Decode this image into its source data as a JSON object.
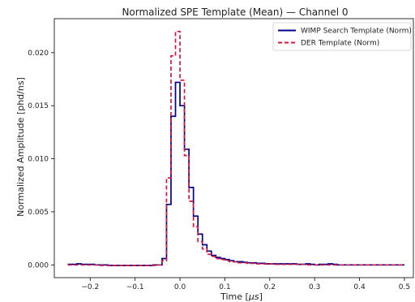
{
  "chart_data": {
    "type": "line",
    "title": "Normalized SPE Template (Mean) — Channel 0",
    "xlabel_prefix": "Time [",
    "xlabel_unit": "μs",
    "xlabel_suffix": "]",
    "ylabel": "Normalized Amplitude [phd/ns]",
    "xlim": [
      -0.28,
      0.52
    ],
    "ylim": [
      -0.0012,
      0.0232
    ],
    "x_ticks": [
      -0.2,
      -0.1,
      0.0,
      0.1,
      0.2,
      0.3,
      0.4,
      0.5
    ],
    "x_tick_labels": [
      "−0.2",
      "−0.1",
      "0.0",
      "0.1",
      "0.2",
      "0.3",
      "0.4",
      "0.5"
    ],
    "y_ticks": [
      0.0,
      0.005,
      0.01,
      0.015,
      0.02
    ],
    "y_tick_labels": [
      "0.000",
      "0.005",
      "0.010",
      "0.015",
      "0.020"
    ],
    "grid": false,
    "legend_position": "top-right",
    "step_bin_width": 0.01,
    "series": [
      {
        "name": "WIMP Search Template (Norm)",
        "color": "#00008b",
        "style": "solid",
        "x": [
          -0.25,
          -0.24,
          -0.23,
          -0.22,
          -0.21,
          -0.2,
          -0.19,
          -0.18,
          -0.17,
          -0.16,
          -0.15,
          -0.14,
          -0.13,
          -0.12,
          -0.11,
          -0.1,
          -0.09,
          -0.08,
          -0.07,
          -0.06,
          -0.05,
          -0.04,
          -0.03,
          -0.02,
          -0.01,
          0.0,
          0.01,
          0.02,
          0.03,
          0.04,
          0.05,
          0.06,
          0.07,
          0.08,
          0.09,
          0.1,
          0.11,
          0.12,
          0.13,
          0.14,
          0.15,
          0.16,
          0.17,
          0.18,
          0.19,
          0.2,
          0.21,
          0.22,
          0.23,
          0.24,
          0.25,
          0.26,
          0.27,
          0.28,
          0.29,
          0.3,
          0.31,
          0.32,
          0.33,
          0.34,
          0.35,
          0.36,
          0.37,
          0.38,
          0.39,
          0.4,
          0.41,
          0.42,
          0.43,
          0.44,
          0.45,
          0.46,
          0.47,
          0.48,
          0.49
        ],
        "values": [
          5e-05,
          5e-05,
          0.0001,
          5e-05,
          5e-05,
          5e-05,
          0.0,
          0.0,
          0.0,
          -5e-05,
          -5e-05,
          -5e-05,
          -5e-05,
          -5e-05,
          -5e-05,
          -5e-05,
          -5e-05,
          -5e-05,
          -5e-05,
          0.0,
          0.0,
          0.0006,
          0.0057,
          0.014,
          0.0172,
          0.015,
          0.0109,
          0.0073,
          0.0046,
          0.0029,
          0.0019,
          0.0013,
          0.0009,
          0.0007,
          0.0006,
          0.0005,
          0.0004,
          0.0003,
          0.0003,
          0.00025,
          0.0002,
          0.0002,
          0.00015,
          0.00015,
          0.0001,
          0.0001,
          0.0001,
          0.0001,
          0.0001,
          0.0001,
          0.0001,
          5e-05,
          5e-05,
          0.0001,
          5e-05,
          0.0,
          5e-05,
          5e-05,
          0.0001,
          5e-05,
          0.0,
          0.0,
          0.0,
          0.0,
          0.0,
          0.0,
          0.0,
          0.0,
          0.0,
          0.0,
          0.0,
          0.0,
          0.0,
          0.0,
          0.0
        ]
      },
      {
        "name": "DER Template (Norm)",
        "color": "#dc143c",
        "style": "dashed",
        "x": [
          -0.25,
          -0.24,
          -0.23,
          -0.22,
          -0.21,
          -0.2,
          -0.19,
          -0.18,
          -0.17,
          -0.16,
          -0.15,
          -0.14,
          -0.13,
          -0.12,
          -0.11,
          -0.1,
          -0.09,
          -0.08,
          -0.07,
          -0.06,
          -0.05,
          -0.04,
          -0.03,
          -0.02,
          -0.01,
          0.0,
          0.01,
          0.02,
          0.03,
          0.04,
          0.05,
          0.06,
          0.07,
          0.08,
          0.09,
          0.1,
          0.11,
          0.12,
          0.13,
          0.14,
          0.15,
          0.16,
          0.17,
          0.18,
          0.19,
          0.2,
          0.21,
          0.22,
          0.23,
          0.24,
          0.25,
          0.26,
          0.27,
          0.28,
          0.29,
          0.3,
          0.31,
          0.32,
          0.33,
          0.34,
          0.35,
          0.36,
          0.37,
          0.38,
          0.39,
          0.4,
          0.41,
          0.42,
          0.43,
          0.44,
          0.45,
          0.46,
          0.47,
          0.48,
          0.49
        ],
        "values": [
          0.0,
          0.0,
          0.0,
          0.0,
          0.0,
          0.0,
          0.0,
          -5e-05,
          -5e-05,
          -5e-05,
          -5e-05,
          -5e-05,
          -5e-05,
          -5e-05,
          -5e-05,
          -5e-05,
          -5e-05,
          -5e-05,
          -5e-05,
          -5e-05,
          0.0,
          0.0004,
          0.0082,
          0.0197,
          0.022,
          0.0174,
          0.0103,
          0.006,
          0.0036,
          0.0022,
          0.0015,
          0.001,
          0.0008,
          0.0006,
          0.0005,
          0.0004,
          0.0003,
          0.0003,
          0.0002,
          0.0002,
          0.00015,
          0.00015,
          0.0001,
          0.0001,
          0.0001,
          0.0001,
          5e-05,
          5e-05,
          5e-05,
          5e-05,
          5e-05,
          5e-05,
          5e-05,
          0.0,
          0.0,
          0.0,
          0.0,
          0.0,
          0.0,
          0.0,
          0.0,
          0.0,
          0.0,
          0.0,
          0.0,
          0.0,
          0.0,
          0.0,
          0.0,
          0.0,
          0.0,
          0.0,
          0.0,
          0.0,
          0.0
        ]
      }
    ]
  }
}
